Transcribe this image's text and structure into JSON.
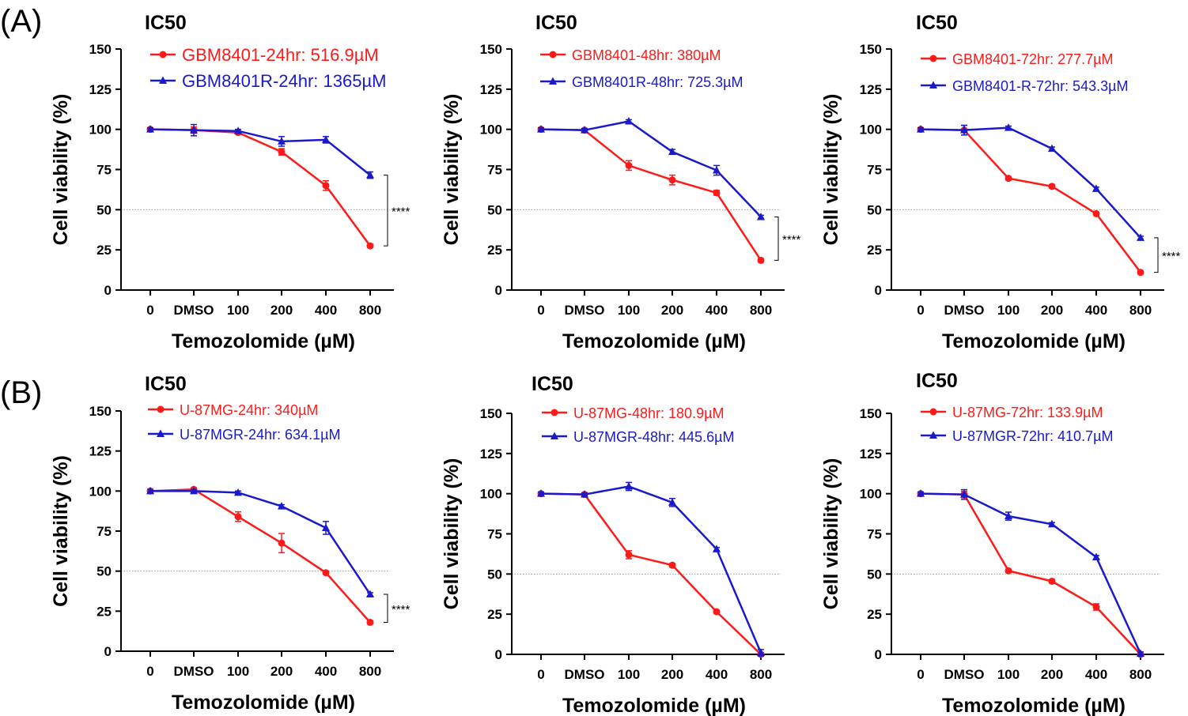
{
  "figure": {
    "panel_labels": [
      "(A)",
      "(B)"
    ],
    "shared": {
      "x_categories": [
        "0",
        "DMSO",
        "100",
        "200",
        "400",
        "800"
      ],
      "x_label": "Temozolomide (µM)",
      "y_label": "Cell viability (%)",
      "y_ticks": [
        0,
        25,
        50,
        75,
        100,
        125,
        150
      ],
      "reference_line": 50
    }
  },
  "colors": {
    "sensitive": "#ff1a1a",
    "resistant": "#1a1acc",
    "axis": "#000000",
    "refline": "#999999"
  },
  "chart_data": [
    {
      "type": "line",
      "panel": "A",
      "title": "IC50",
      "xlabel": "Temozolomide (µM)",
      "ylabel": "Cell viability (%)",
      "categories": [
        "0",
        "DMSO",
        "100",
        "200",
        "400",
        "800"
      ],
      "ylim": [
        0,
        150
      ],
      "reference_line": 50,
      "series": [
        {
          "name": "GBM8401-24hr: 516.9µM",
          "color": "#ff1a1a",
          "marker": "circle",
          "values": [
            100,
            99.5,
            98,
            86,
            65,
            27.5
          ],
          "errors": [
            1,
            2,
            1,
            2,
            3,
            1
          ]
        },
        {
          "name": "GBM8401R-24hr: 1365µM",
          "color": "#1a1acc",
          "marker": "triangle",
          "values": [
            100,
            99.5,
            99,
            92.5,
            93.5,
            71.5
          ],
          "errors": [
            1,
            3.5,
            1,
            3,
            2,
            2
          ]
        }
      ],
      "significance": {
        "label": "****",
        "between": [
          27.5,
          71.5
        ]
      }
    },
    {
      "type": "line",
      "panel": "A",
      "title": "IC50",
      "xlabel": "Temozolomide (µM)",
      "ylabel": "Cell viability (%)",
      "categories": [
        "0",
        "DMSO",
        "100",
        "200",
        "400",
        "800"
      ],
      "ylim": [
        0,
        150
      ],
      "reference_line": 50,
      "series": [
        {
          "name": "GBM8401-48hr: 380µM",
          "color": "#ff1a1a",
          "marker": "circle",
          "values": [
            100,
            99.5,
            77.5,
            68.5,
            60.5,
            18.5
          ],
          "errors": [
            1,
            1,
            3,
            3,
            1.5,
            1
          ]
        },
        {
          "name": "GBM8401R-48hr: 725.3µM",
          "color": "#1a1acc",
          "marker": "triangle",
          "values": [
            100,
            99.5,
            105,
            86,
            74.5,
            45.5
          ],
          "errors": [
            1,
            1,
            1,
            1.5,
            3,
            1
          ]
        }
      ],
      "significance": {
        "label": "****",
        "between": [
          18.5,
          45.5
        ]
      }
    },
    {
      "type": "line",
      "panel": "A",
      "title": "IC50",
      "xlabel": "Temozolomide (µM)",
      "ylabel": "Cell viability (%)",
      "categories": [
        "0",
        "DMSO",
        "100",
        "200",
        "400",
        "800"
      ],
      "ylim": [
        0,
        150
      ],
      "reference_line": 50,
      "series": [
        {
          "name": "GBM8401-72hr: 277.7µM",
          "color": "#ff1a1a",
          "marker": "circle",
          "values": [
            100,
            99.5,
            69.5,
            64.5,
            47.5,
            11
          ],
          "errors": [
            1,
            3,
            1,
            1,
            1,
            1
          ]
        },
        {
          "name": "GBM8401-R-72hr: 543.3µM",
          "color": "#1a1acc",
          "marker": "triangle",
          "values": [
            100,
            99.5,
            101,
            88,
            63,
            32.5
          ],
          "errors": [
            1,
            3,
            1,
            1,
            1,
            1
          ]
        }
      ],
      "significance": {
        "label": "****",
        "between": [
          11,
          32.5
        ]
      }
    },
    {
      "type": "line",
      "panel": "B",
      "title": "IC50",
      "xlabel": "Temozolomide (µM)",
      "ylabel": "Cell viability (%)",
      "categories": [
        "0",
        "DMSO",
        "100",
        "200",
        "400",
        "800"
      ],
      "ylim": [
        0,
        150
      ],
      "reference_line": 50,
      "series": [
        {
          "name": "U-87MG-24hr: 340µM",
          "color": "#ff1a1a",
          "marker": "circle",
          "values": [
            100,
            101,
            84,
            67.5,
            49,
            18
          ],
          "errors": [
            1,
            1,
            3,
            6,
            1,
            1
          ]
        },
        {
          "name": "U-87MGR-24hr: 634.1µM",
          "color": "#1a1acc",
          "marker": "triangle",
          "values": [
            100,
            100,
            99,
            90.5,
            77,
            35.5
          ],
          "errors": [
            1,
            1,
            1,
            1,
            4,
            1
          ]
        }
      ],
      "significance": {
        "label": "****",
        "between": [
          18,
          35.5
        ]
      }
    },
    {
      "type": "line",
      "panel": "B",
      "title": "IC50",
      "xlabel": "Temozolomide (µM)",
      "ylabel": "Cell viability (%)",
      "categories": [
        "0",
        "DMSO",
        "100",
        "200",
        "400",
        "800"
      ],
      "ylim": [
        0,
        150
      ],
      "reference_line": 50,
      "series": [
        {
          "name": "U-87MG-48hr: 180.9µM",
          "color": "#ff1a1a",
          "marker": "circle",
          "values": [
            100,
            99.5,
            62,
            55.5,
            26.5,
            0
          ],
          "errors": [
            1,
            1,
            2.5,
            1,
            1,
            1
          ]
        },
        {
          "name": "U-87MGR-48hr: 445.6µM",
          "color": "#1a1acc",
          "marker": "triangle",
          "values": [
            100,
            99.5,
            104.5,
            94.5,
            65.5,
            1
          ],
          "errors": [
            1,
            1,
            2.5,
            2.5,
            1,
            2
          ]
        }
      ]
    },
    {
      "type": "line",
      "panel": "B",
      "title": "IC50",
      "xlabel": "Temozolomide (µM)",
      "ylabel": "Cell viability (%)",
      "categories": [
        "0",
        "DMSO",
        "100",
        "200",
        "400",
        "800"
      ],
      "ylim": [
        0,
        150
      ],
      "reference_line": 50,
      "series": [
        {
          "name": "U-87MG-72hr: 133.9µM",
          "color": "#ff1a1a",
          "marker": "circle",
          "values": [
            100,
            99.5,
            52,
            45.5,
            29.5,
            0
          ],
          "errors": [
            1,
            2,
            1,
            1,
            2,
            1
          ]
        },
        {
          "name": "U-87MGR-72hr: 410.7µM",
          "color": "#1a1acc",
          "marker": "triangle",
          "values": [
            100,
            99.5,
            86,
            81,
            60.5,
            0.5
          ],
          "errors": [
            1,
            3,
            2.5,
            1,
            1,
            1
          ]
        }
      ]
    }
  ]
}
